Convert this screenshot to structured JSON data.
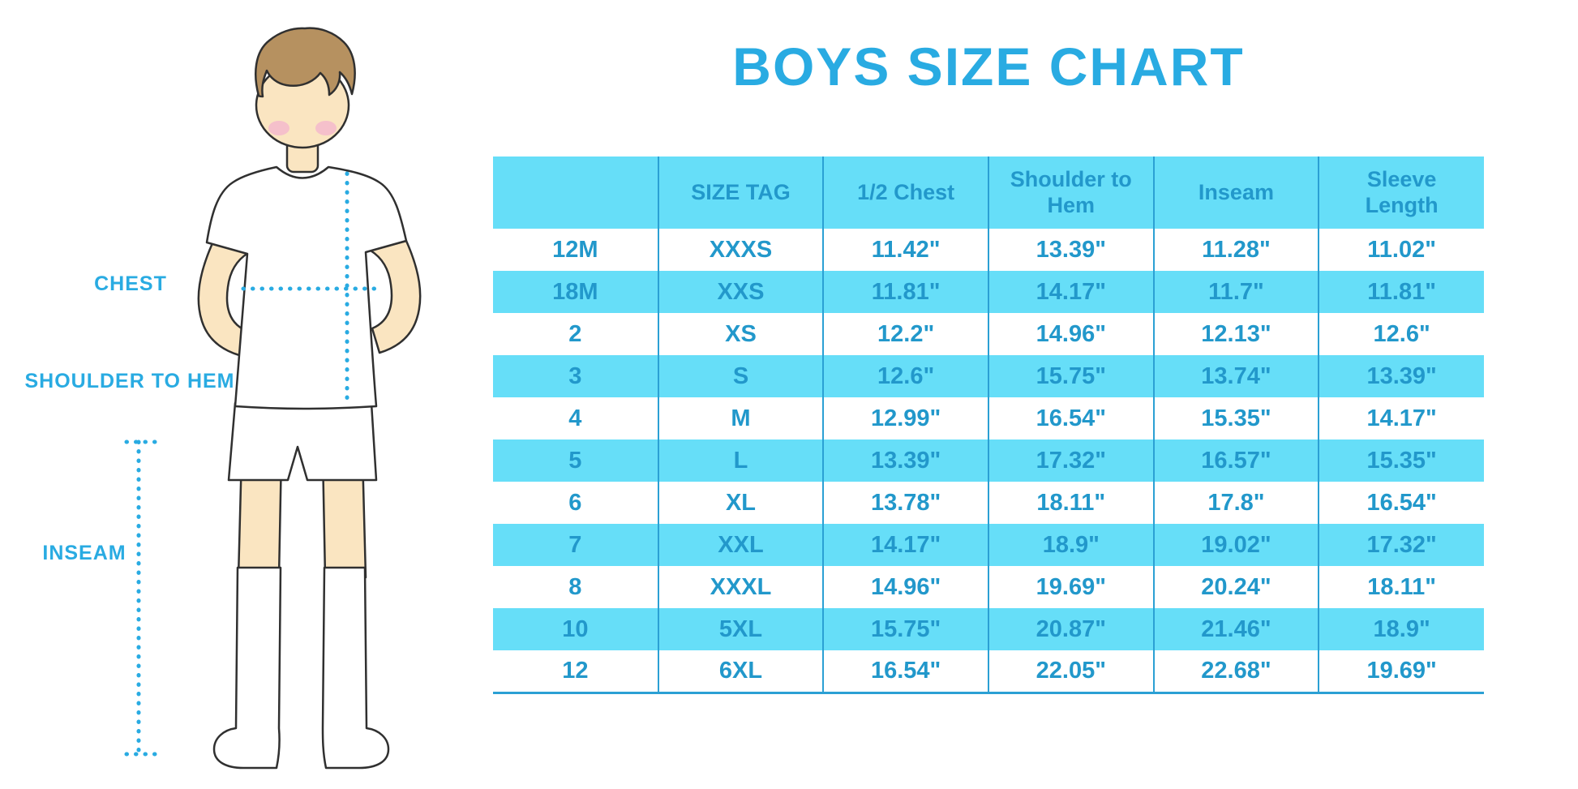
{
  "title": "BOYS SIZE CHART",
  "figure": {
    "labels": {
      "chest": "CHEST",
      "shoulder_to_hem": "SHOULDER TO HEM",
      "inseam": "INSEAM"
    }
  },
  "chart_data": {
    "type": "table",
    "title": "BOYS SIZE CHART",
    "columns": [
      "",
      "SIZE TAG",
      "1/2 Chest",
      "Shoulder to Hem",
      "Inseam",
      "Sleeve Length"
    ],
    "rows": [
      [
        "12M",
        "XXXS",
        "11.42\"",
        "13.39\"",
        "11.28\"",
        "11.02\""
      ],
      [
        "18M",
        "XXS",
        "11.81\"",
        "14.17\"",
        "11.7\"",
        "11.81\""
      ],
      [
        "2",
        "XS",
        "12.2\"",
        "14.96\"",
        "12.13\"",
        "12.6\""
      ],
      [
        "3",
        "S",
        "12.6\"",
        "15.75\"",
        "13.74\"",
        "13.39\""
      ],
      [
        "4",
        "M",
        "12.99\"",
        "16.54\"",
        "15.35\"",
        "14.17\""
      ],
      [
        "5",
        "L",
        "13.39\"",
        "17.32\"",
        "16.57\"",
        "15.35\""
      ],
      [
        "6",
        "XL",
        "13.78\"",
        "18.11\"",
        "17.8\"",
        "16.54\""
      ],
      [
        "7",
        "XXL",
        "14.17\"",
        "18.9\"",
        "19.02\"",
        "17.32\""
      ],
      [
        "8",
        "XXXL",
        "14.96\"",
        "19.69\"",
        "20.24\"",
        "18.11\""
      ],
      [
        "10",
        "5XL",
        "15.75\"",
        "20.87\"",
        "21.46\"",
        "18.9\""
      ],
      [
        "12",
        "6XL",
        "16.54\"",
        "22.05\"",
        "22.68\"",
        "19.69\""
      ]
    ],
    "layout": {
      "striped": true,
      "stripe_pattern": "white and light-cyan alternating rows, header filled light-cyan",
      "legend": "none",
      "grid": "vertical column separators only"
    }
  },
  "colors": {
    "accent_blue": "#29ABE2",
    "row_fill": "#66DEF8",
    "table_text": "#2298CB",
    "table_line": "#2BA0D4",
    "skin": "#FAE5C1",
    "hair": "#B69160",
    "blush": "#F5C0CB",
    "outline": "#303030"
  }
}
